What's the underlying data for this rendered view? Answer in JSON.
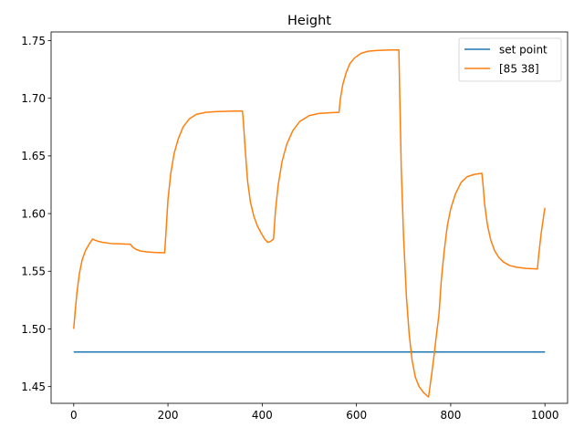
{
  "chart_data": {
    "type": "line",
    "title": "Height",
    "xlabel": "",
    "ylabel": "",
    "xlim": [
      -48,
      1048
    ],
    "ylim": [
      1.4355,
      1.7575
    ],
    "xticks": [
      0,
      200,
      400,
      600,
      800,
      1000
    ],
    "yticks": [
      1.45,
      1.5,
      1.55,
      1.6,
      1.65,
      1.7,
      1.75
    ],
    "xtick_labels": [
      "0",
      "200",
      "400",
      "600",
      "800",
      "1000"
    ],
    "ytick_labels": [
      "1.45",
      "1.50",
      "1.55",
      "1.60",
      "1.65",
      "1.70",
      "1.75"
    ],
    "legend": {
      "position": "top-right"
    },
    "grid": false,
    "series": [
      {
        "name": "set point",
        "color": "#1f77b4",
        "x": [
          0,
          1000
        ],
        "y": [
          1.48,
          1.48
        ]
      },
      {
        "name": "[85 38]",
        "color": "#ff7f0e",
        "x": [
          0,
          3,
          7,
          12,
          18,
          25,
          32,
          40,
          45,
          52,
          62,
          80,
          100,
          120,
          125,
          132,
          142,
          155,
          170,
          193,
          196,
          200,
          206,
          213,
          222,
          232,
          245,
          260,
          280,
          300,
          330,
          358,
          360,
          364,
          369,
          375,
          382,
          390,
          398,
          405,
          412,
          418,
          424,
          428,
          434,
          442,
          452,
          465,
          480,
          500,
          520,
          545,
          563,
          566,
          571,
          578,
          586,
          596,
          610,
          625,
          645,
          665,
          690,
          692,
          695,
          700,
          706,
          712,
          718,
          725,
          733,
          742,
          750,
          753,
          756,
          760,
          765,
          770,
          775,
          780,
          786,
          793,
          800,
          810,
          822,
          835,
          850,
          866,
          868,
          872,
          878,
          885,
          893,
          902,
          912,
          925,
          940,
          960,
          984,
          987,
          992,
          998,
          1000
        ],
        "y": [
          1.5,
          1.515,
          1.532,
          1.548,
          1.56,
          1.568,
          1.573,
          1.578,
          1.577,
          1.576,
          1.575,
          1.574,
          1.5738,
          1.5735,
          1.571,
          1.569,
          1.5675,
          1.5668,
          1.5663,
          1.566,
          1.585,
          1.612,
          1.635,
          1.652,
          1.665,
          1.675,
          1.682,
          1.686,
          1.6878,
          1.6884,
          1.6888,
          1.689,
          1.68,
          1.655,
          1.628,
          1.61,
          1.598,
          1.589,
          1.583,
          1.578,
          1.575,
          1.576,
          1.578,
          1.602,
          1.625,
          1.645,
          1.66,
          1.672,
          1.68,
          1.685,
          1.6868,
          1.6875,
          1.6878,
          1.7,
          1.712,
          1.722,
          1.73,
          1.735,
          1.739,
          1.7408,
          1.7415,
          1.7418,
          1.742,
          1.7,
          1.64,
          1.58,
          1.528,
          1.495,
          1.473,
          1.458,
          1.45,
          1.445,
          1.442,
          1.441,
          1.45,
          1.462,
          1.478,
          1.496,
          1.512,
          1.542,
          1.567,
          1.59,
          1.604,
          1.617,
          1.627,
          1.632,
          1.634,
          1.635,
          1.628,
          1.608,
          1.59,
          1.577,
          1.568,
          1.562,
          1.558,
          1.555,
          1.5535,
          1.5525,
          1.552,
          1.565,
          1.583,
          1.6,
          1.605
        ]
      }
    ]
  }
}
